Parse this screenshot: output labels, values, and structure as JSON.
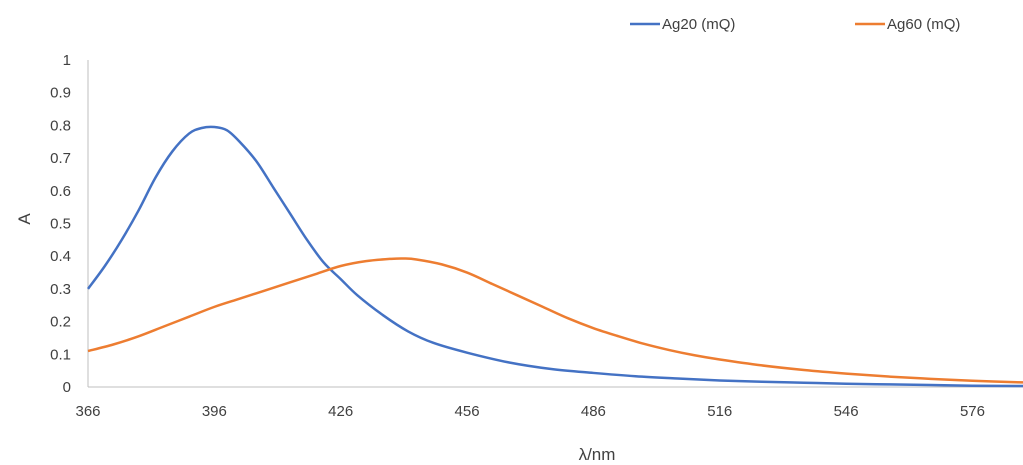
{
  "chart_data": {
    "type": "line",
    "xlabel": "λ/nm",
    "ylabel": "A",
    "xlim": [
      366,
      588
    ],
    "ylim": [
      0,
      1
    ],
    "x_ticks": [
      366,
      396,
      426,
      456,
      486,
      516,
      546,
      576
    ],
    "x_tick_labels": [
      "366",
      "396",
      "426",
      "456",
      "486",
      "516",
      "546",
      "576"
    ],
    "y_ticks": [
      0,
      0.1,
      0.2,
      0.3,
      0.4,
      0.5,
      0.6,
      0.7,
      0.8,
      0.9,
      1
    ],
    "y_tick_labels": [
      "0",
      "0.1",
      "0.2",
      "0.3",
      "0.4",
      "0.5",
      "0.6",
      "0.7",
      "0.8",
      "0.9",
      "1"
    ],
    "grid": false,
    "legend_position": "top-right",
    "series": [
      {
        "name": "Ag20 (mQ)",
        "color": "#4472C4",
        "x": [
          366,
          370,
          374,
          378,
          382,
          386,
          390,
          393,
          396,
          399,
          402,
          406,
          410,
          414,
          418,
          422,
          426,
          430,
          436,
          442,
          448,
          456,
          466,
          476,
          486,
          496,
          506,
          516,
          526,
          536,
          546,
          556,
          566,
          576,
          588
        ],
        "y": [
          0.3,
          0.37,
          0.45,
          0.54,
          0.64,
          0.72,
          0.775,
          0.792,
          0.795,
          0.785,
          0.75,
          0.69,
          0.61,
          0.53,
          0.45,
          0.38,
          0.33,
          0.28,
          0.22,
          0.17,
          0.135,
          0.105,
          0.075,
          0.055,
          0.043,
          0.033,
          0.026,
          0.02,
          0.016,
          0.013,
          0.01,
          0.008,
          0.006,
          0.004,
          0.003
        ]
      },
      {
        "name": "Ag60 (mQ)",
        "color": "#ED7D31",
        "x": [
          366,
          372,
          378,
          384,
          390,
          396,
          402,
          408,
          414,
          420,
          426,
          432,
          438,
          441,
          444,
          450,
          456,
          462,
          468,
          474,
          480,
          486,
          492,
          498,
          504,
          510,
          516,
          526,
          536,
          546,
          556,
          566,
          576,
          588
        ],
        "y": [
          0.11,
          0.13,
          0.155,
          0.185,
          0.215,
          0.245,
          0.27,
          0.295,
          0.32,
          0.345,
          0.37,
          0.385,
          0.392,
          0.393,
          0.39,
          0.375,
          0.35,
          0.315,
          0.28,
          0.245,
          0.21,
          0.18,
          0.155,
          0.132,
          0.113,
          0.097,
          0.084,
          0.066,
          0.052,
          0.041,
          0.032,
          0.025,
          0.019,
          0.014
        ]
      }
    ]
  }
}
